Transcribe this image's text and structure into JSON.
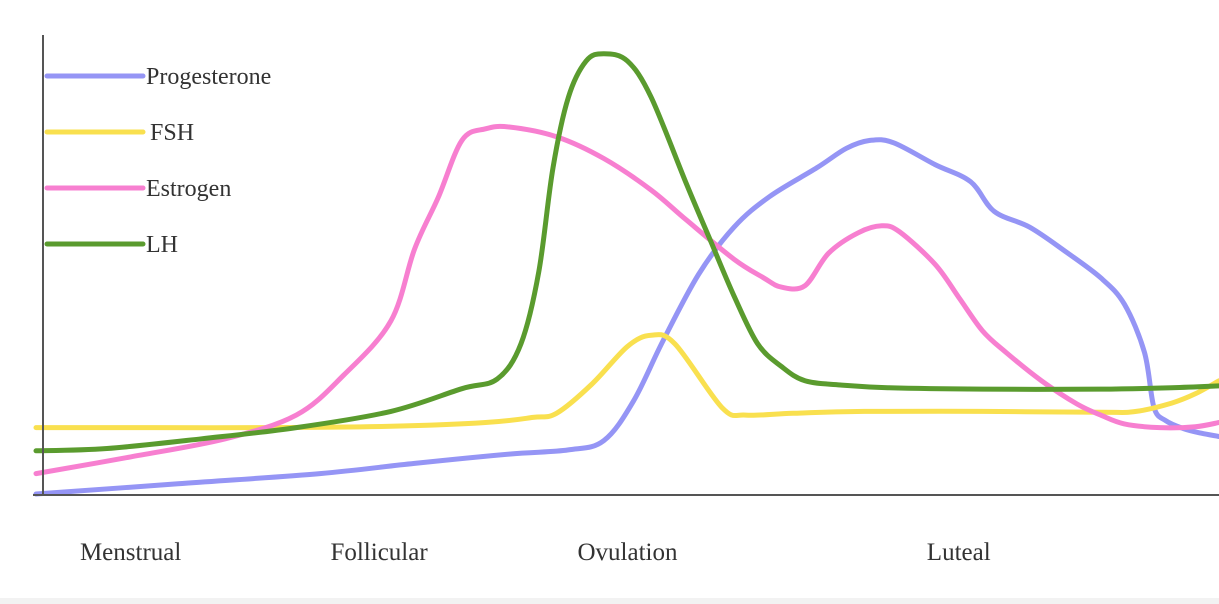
{
  "chart_data": {
    "type": "line",
    "title": "",
    "xlabel": "",
    "ylabel": "",
    "grid": false,
    "legend_position": "top-left",
    "x_range": [
      0,
      100
    ],
    "y_range": [
      0,
      100
    ],
    "x_ticks": [],
    "y_ticks": [],
    "phases": [
      {
        "label": "Menstrual",
        "x": 8
      },
      {
        "label": "Follicular",
        "x": 29
      },
      {
        "label": "Ovulation",
        "x": 50
      },
      {
        "label": "Luteal",
        "x": 78
      }
    ],
    "series": [
      {
        "name": "Progesterone",
        "color": "#9595f5",
        "points": [
          [
            0,
            0
          ],
          [
            12,
            2.2
          ],
          [
            24,
            4.4
          ],
          [
            32,
            6.6
          ],
          [
            40,
            8.6
          ],
          [
            45,
            9.5
          ],
          [
            48,
            11.5
          ],
          [
            50.5,
            20
          ],
          [
            53,
            33
          ],
          [
            56,
            47.3
          ],
          [
            59,
            57.5
          ],
          [
            62,
            64.1
          ],
          [
            66,
            70.3
          ],
          [
            68.5,
            74.5
          ],
          [
            70.5,
            76.2
          ],
          [
            72.5,
            75.7
          ],
          [
            76,
            71
          ],
          [
            79,
            67.3
          ],
          [
            81,
            60.9
          ],
          [
            84,
            57.5
          ],
          [
            87,
            52.3
          ],
          [
            90,
            46.6
          ],
          [
            92,
            40.9
          ],
          [
            93.7,
            30.5
          ],
          [
            94.5,
            18.7
          ],
          [
            95.5,
            15.8
          ],
          [
            97,
            14.1
          ],
          [
            98.5,
            13.1
          ],
          [
            100,
            12.4
          ]
        ]
      },
      {
        "name": "FSH",
        "color": "#f9e04f",
        "points": [
          [
            0,
            14.3
          ],
          [
            10,
            14.3
          ],
          [
            20,
            14.3
          ],
          [
            30,
            14.6
          ],
          [
            38,
            15.4
          ],
          [
            42,
            16.5
          ],
          [
            44,
            17.4
          ],
          [
            47,
            23.7
          ],
          [
            50,
            31.8
          ],
          [
            52,
            34.2
          ],
          [
            54,
            32.4
          ],
          [
            58,
            18.6
          ],
          [
            60,
            17
          ],
          [
            64,
            17.4
          ],
          [
            70,
            17.8
          ],
          [
            80,
            17.8
          ],
          [
            90,
            17.6
          ],
          [
            93,
            17.8
          ],
          [
            96,
            19.6
          ],
          [
            98,
            21.6
          ],
          [
            100,
            24.4
          ]
        ]
      },
      {
        "name": "Estrogen",
        "color": "#f77fd0",
        "points": [
          [
            0,
            4.4
          ],
          [
            8,
            8
          ],
          [
            16,
            11.9
          ],
          [
            22,
            17
          ],
          [
            26,
            25.6
          ],
          [
            30,
            37.3
          ],
          [
            32,
            52.8
          ],
          [
            34,
            63.9
          ],
          [
            36,
            76.2
          ],
          [
            38,
            78.7
          ],
          [
            40,
            79.1
          ],
          [
            44,
            77
          ],
          [
            48,
            72.3
          ],
          [
            52,
            65.5
          ],
          [
            55,
            59
          ],
          [
            59,
            50.6
          ],
          [
            61.5,
            46.6
          ],
          [
            63,
            44.6
          ],
          [
            65,
            44.9
          ],
          [
            67,
            51.9
          ],
          [
            69.5,
            56.3
          ],
          [
            71.5,
            57.8
          ],
          [
            73,
            56.5
          ],
          [
            76,
            49.5
          ],
          [
            78,
            42.4
          ],
          [
            80,
            35.2
          ],
          [
            82,
            30.5
          ],
          [
            85,
            24.4
          ],
          [
            88,
            19.4
          ],
          [
            90,
            17
          ],
          [
            92,
            15.1
          ],
          [
            95,
            14.3
          ],
          [
            98,
            14.5
          ],
          [
            100,
            15.4
          ]
        ]
      },
      {
        "name": "LH",
        "color": "#5a9b2e",
        "points": [
          [
            0,
            9.3
          ],
          [
            6,
            9.8
          ],
          [
            14,
            11.9
          ],
          [
            22,
            14.3
          ],
          [
            30,
            17.8
          ],
          [
            36,
            22.7
          ],
          [
            39,
            24.8
          ],
          [
            41,
            32.4
          ],
          [
            42.5,
            47.9
          ],
          [
            43.7,
            70.3
          ],
          [
            45,
            85.5
          ],
          [
            46.5,
            93.3
          ],
          [
            48,
            94.9
          ],
          [
            50,
            93.3
          ],
          [
            52,
            85.5
          ],
          [
            55,
            66.7
          ],
          [
            57,
            54.7
          ],
          [
            59,
            42.7
          ],
          [
            61,
            32.4
          ],
          [
            63,
            27.5
          ],
          [
            65,
            24.4
          ],
          [
            68,
            23.5
          ],
          [
            72,
            22.9
          ],
          [
            80,
            22.6
          ],
          [
            90,
            22.6
          ],
          [
            96,
            22.9
          ],
          [
            100,
            23.3
          ]
        ]
      }
    ]
  },
  "legend": {
    "entries": [
      {
        "label": "Progesterone",
        "color": "#9595f5"
      },
      {
        "label": "FSH",
        "color": "#f9e04f"
      },
      {
        "label": "Estrogen",
        "color": "#f77fd0"
      },
      {
        "label": "LH",
        "color": "#5a9b2e"
      }
    ]
  },
  "axes": {
    "color": "#555555"
  }
}
